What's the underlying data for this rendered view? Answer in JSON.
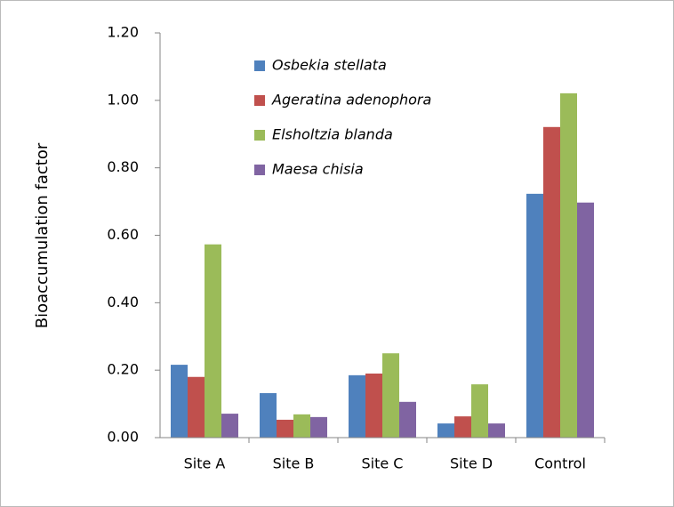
{
  "chart_data": {
    "type": "bar",
    "y_label": "Bioaccumulation factor",
    "categories": [
      "Site A",
      "Site B",
      "Site C",
      "Site D",
      "Control"
    ],
    "series": [
      {
        "name": "Osbekia stellata",
        "color": "#4f81bd",
        "values": [
          0.216,
          0.132,
          0.185,
          0.042,
          0.723
        ]
      },
      {
        "name": "Ageratina adenophora",
        "color": "#c0504d",
        "values": [
          0.18,
          0.053,
          0.19,
          0.063,
          0.921
        ]
      },
      {
        "name": "Elsholtzia blanda",
        "color": "#9bbb59",
        "values": [
          0.573,
          0.069,
          0.25,
          0.158,
          1.021
        ]
      },
      {
        "name": "Maesa chisia",
        "color": "#8064a2",
        "values": [
          0.071,
          0.061,
          0.106,
          0.042,
          0.697
        ]
      }
    ],
    "ylim": [
      0,
      1.2
    ],
    "yticks": [
      {
        "value": 0,
        "label": "0.00"
      },
      {
        "value": 0.2,
        "label": "0.20"
      },
      {
        "value": 0.4,
        "label": "0.40"
      },
      {
        "value": 0.6,
        "label": "0.60"
      },
      {
        "value": 0.8,
        "label": "0.80"
      },
      {
        "value": 1.0,
        "label": "1.00"
      },
      {
        "value": 1.2,
        "label": "1.20"
      }
    ],
    "legend": "upper left"
  }
}
